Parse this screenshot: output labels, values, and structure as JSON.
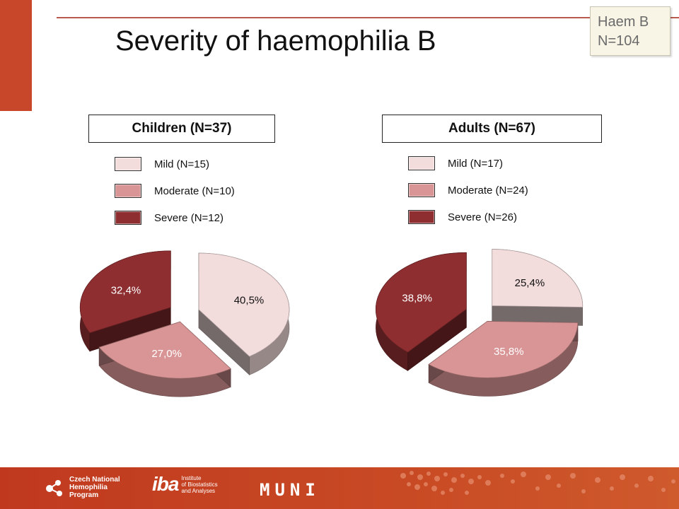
{
  "page": {
    "title": "Severity of haemophilia B",
    "note": [
      "Haem B",
      "N=104"
    ]
  },
  "colors": {
    "accent": "#c8472a",
    "mild": "#f3dcdc",
    "moderate": "#d99595",
    "severe": "#8e2e30"
  },
  "chart_data": [
    {
      "type": "pie",
      "title": "Children (N=37)",
      "categories": [
        "Mild (N=15)",
        "Moderate (N=10)",
        "Severe (N=12)"
      ],
      "values": [
        40.5,
        27.0,
        32.4
      ],
      "labels": [
        "40,5%",
        "27,0%",
        "32,4%"
      ],
      "legend": "top-left"
    },
    {
      "type": "pie",
      "title": "Adults (N=67)",
      "categories": [
        "Mild (N=17)",
        "Moderate (N=24)",
        "Severe (N=26)"
      ],
      "values": [
        25.4,
        35.8,
        38.8
      ],
      "labels": [
        "25,4%",
        "35,8%",
        "38,8%"
      ],
      "legend": "top-left"
    }
  ],
  "footer": {
    "logo_cnhp": [
      "Czech National",
      "Hemophilia",
      "Program"
    ],
    "logo_iba_mark": "iba",
    "logo_iba_text": [
      "Institute",
      "of Biostatistics",
      "and Analyses"
    ],
    "logo_muni": "MUNI"
  }
}
